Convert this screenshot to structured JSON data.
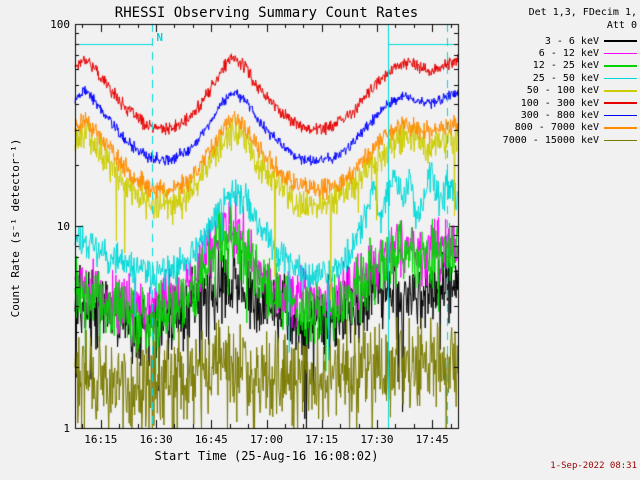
{
  "chart_data": {
    "type": "line",
    "title": "RHESSI Observing Summary Count Rates",
    "xlabel": "Start Time (25-Aug-16 16:08:02)",
    "ylabel": "Count Rate (s⁻¹ detector⁻¹)",
    "background": "#f1f1f1",
    "axis_color": "#000000",
    "ylog": true,
    "ylim": [
      1,
      100
    ],
    "xlim": [
      0,
      104
    ],
    "x_unit": "minutes after 16:08:02",
    "grid": false,
    "y_ticks": [
      {
        "v": 1,
        "label": "1"
      },
      {
        "v": 10,
        "label": "10"
      },
      {
        "v": 100,
        "label": "100"
      }
    ],
    "x_ticks": [
      {
        "t": 7,
        "label": "16:15"
      },
      {
        "t": 22,
        "label": "16:30"
      },
      {
        "t": 37,
        "label": "16:45"
      },
      {
        "t": 52,
        "label": "17:00"
      },
      {
        "t": 67,
        "label": "17:15"
      },
      {
        "t": 82,
        "label": "17:30"
      },
      {
        "t": 97,
        "label": "17:45"
      }
    ],
    "legend": {
      "position": "right",
      "header1": "Det 1,3, FDecim 1,",
      "header2": "Att 0"
    },
    "flags": {
      "label": "N",
      "color": "#00d8d8",
      "bar_value": 80,
      "bars": [
        [
          0,
          21
        ],
        [
          85,
          104
        ]
      ],
      "vlines": [
        {
          "t": 21,
          "style": "dashed"
        },
        {
          "t": 85,
          "style": "solid"
        },
        {
          "t": 101,
          "style": "dashed"
        }
      ]
    },
    "series": [
      {
        "name": "3 - 6 keV",
        "color": "#000000",
        "seed": 3,
        "noise": 0.22,
        "spike_p": 0.05,
        "spike": 0.5,
        "x": [
          0,
          8,
          16,
          24,
          32,
          40,
          43,
          48,
          55,
          62,
          70,
          78,
          85,
          92,
          98,
          104
        ],
        "y": [
          4.2,
          3.8,
          3.2,
          3.4,
          4.2,
          5.2,
          5.5,
          4.5,
          3.8,
          3.3,
          3.6,
          4.3,
          5,
          4.6,
          5,
          5.2
        ]
      },
      {
        "name": "6 - 12 keV",
        "color": "#ff00ff",
        "seed": 5,
        "noise": 0.18,
        "x": [
          0,
          5,
          12,
          18,
          24,
          30,
          35,
          39,
          42,
          45,
          49,
          54,
          60,
          66,
          72,
          78,
          83,
          88,
          93,
          98,
          104
        ],
        "y": [
          5.5,
          4.8,
          4.2,
          3.9,
          4.1,
          4.9,
          6.5,
          8.5,
          10.5,
          9,
          6.4,
          5,
          4.4,
          4.1,
          4.6,
          5.6,
          6.8,
          7.8,
          7,
          7.6,
          8.2
        ]
      },
      {
        "name": "12 - 25 keV",
        "color": "#00d400",
        "seed": 7,
        "noise": 0.2,
        "spike_p": 0.03,
        "spike": 0.4,
        "x": [
          0,
          5,
          12,
          18,
          24,
          30,
          35,
          39,
          42,
          45,
          49,
          54,
          60,
          66,
          72,
          78,
          83,
          88,
          93,
          98,
          104
        ],
        "y": [
          4.6,
          4.3,
          3.8,
          3.4,
          3.6,
          4.4,
          6,
          8,
          9.8,
          8.5,
          6,
          4.6,
          3.9,
          3.6,
          4.1,
          5.2,
          6.5,
          7.6,
          6.8,
          7.4,
          8
        ]
      },
      {
        "name": "25 - 50 keV",
        "color": "#00d8d8",
        "seed": 11,
        "noise": 0.1,
        "spike_p": 0.01,
        "spike": 0.5,
        "x": [
          0,
          4,
          10,
          16,
          22,
          28,
          33,
          37,
          40,
          43,
          46,
          50,
          55,
          60,
          65,
          70,
          74,
          77,
          79,
          81,
          83,
          85,
          87,
          89,
          91,
          93,
          95,
          97,
          99,
          101,
          104
        ],
        "y": [
          9,
          8.2,
          7,
          6.2,
          5.8,
          6.2,
          7.5,
          10,
          13,
          15,
          13.5,
          10,
          7.5,
          6.2,
          5.6,
          6,
          7,
          9,
          12,
          16,
          11,
          14,
          19,
          13,
          17,
          11,
          14,
          18,
          13,
          16,
          14
        ]
      },
      {
        "name": "50 - 100 keV",
        "color": "#cccc00",
        "seed": 13,
        "noise": 0.1,
        "spike_p": 0.015,
        "spike": 0.45,
        "x": [
          0,
          3,
          8,
          14,
          20,
          26,
          31,
          36,
          40,
          43,
          46,
          50,
          55,
          60,
          65,
          70,
          75,
          80,
          85,
          89,
          93,
          97,
          100,
          104
        ],
        "y": [
          27,
          29,
          22,
          16,
          13,
          12.5,
          14.5,
          19,
          26,
          29,
          26,
          20,
          16,
          13.5,
          12.5,
          13,
          15,
          19.5,
          25,
          27,
          26,
          24,
          26,
          28
        ]
      },
      {
        "name": "100 - 300 keV",
        "color": "#e60000",
        "seed": 17,
        "noise": 0.04,
        "x": [
          0,
          3,
          8,
          14,
          20,
          26,
          31,
          36,
          40,
          43,
          46,
          50,
          55,
          60,
          65,
          70,
          75,
          80,
          85,
          89,
          93,
          97,
          100,
          104
        ],
        "y": [
          62,
          68,
          52,
          38,
          31,
          30,
          34,
          45,
          60,
          68,
          62,
          48,
          38,
          32,
          30,
          31,
          36,
          46,
          58,
          65,
          62,
          58,
          62,
          66
        ]
      },
      {
        "name": "300 - 800 keV",
        "color": "#0000ff",
        "seed": 19,
        "noise": 0.035,
        "x": [
          0,
          3,
          8,
          14,
          20,
          26,
          31,
          36,
          40,
          43,
          46,
          50,
          55,
          60,
          65,
          70,
          75,
          80,
          85,
          89,
          93,
          97,
          100,
          104
        ],
        "y": [
          43,
          47,
          36,
          26,
          22,
          21,
          24,
          31,
          41,
          46,
          43,
          33,
          26,
          22,
          21,
          21.5,
          25,
          32,
          40,
          44,
          42,
          40,
          43,
          45
        ]
      },
      {
        "name": "800 - 7000 keV",
        "color": "#ff8c00",
        "seed": 23,
        "noise": 0.06,
        "x": [
          0,
          3,
          8,
          14,
          20,
          26,
          31,
          36,
          40,
          43,
          46,
          50,
          55,
          60,
          65,
          70,
          75,
          80,
          85,
          89,
          93,
          97,
          100,
          104
        ],
        "y": [
          31,
          34,
          26,
          19,
          15.5,
          15,
          17,
          22.5,
          30,
          34,
          31,
          24,
          19,
          16,
          15,
          15.5,
          18,
          23,
          29,
          32,
          30,
          29,
          31,
          33
        ]
      },
      {
        "name": "7000 - 15000 keV",
        "color": "#7a7a00",
        "seed": 29,
        "noise": 0.28,
        "spike_p": 0.06,
        "spike": 0.5,
        "x": [
          0,
          10,
          20,
          30,
          40,
          50,
          60,
          70,
          80,
          90,
          104
        ],
        "y": [
          1.8,
          1.7,
          1.6,
          1.8,
          2.1,
          1.9,
          1.7,
          1.8,
          2,
          2.1,
          2
        ]
      }
    ]
  },
  "footer": {
    "timestamp": "1-Sep-2022 08:31",
    "color": "#990000"
  }
}
